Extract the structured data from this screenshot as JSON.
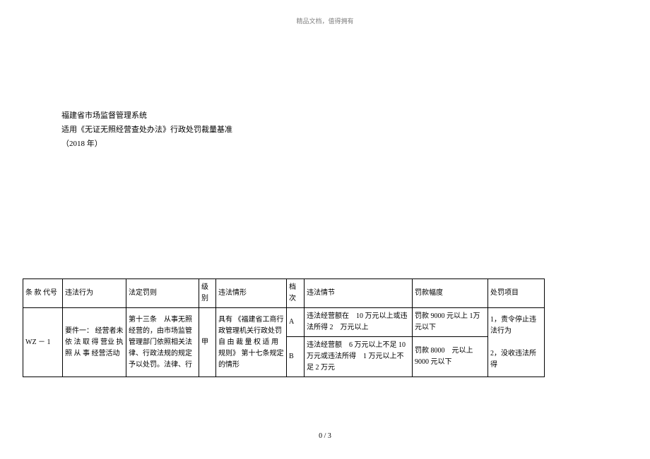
{
  "header": "精品文档，值得拥有",
  "title": {
    "line1": "福建省市场监督管理系统",
    "line2": "适用《无证无照经营查处办法》行政处罚裁量基准",
    "line3": "（2018 年）"
  },
  "table": {
    "headers": {
      "code": "条 款 代号",
      "behavior": "违法行为",
      "penalty": "法定罚则",
      "level": "级别",
      "situation": "违法情形",
      "grade": "档次",
      "detail": "违法情节",
      "range": "罚款幅度",
      "item": "处罚项目"
    },
    "row": {
      "code": "WZ － 1",
      "behavior": "要件一： 经营者未 依 法 取 得 营业 执 照 从 事 经营活动",
      "penalty": "第十三条　从事无照经营的，由市场监管管理部门依照相关法律、行政法规的规定予以处罚。法律、行",
      "level": "甲",
      "situation": "具有 《福建省工商行政管理机关行政处罚自 由 裁 量 权 适 用 规则》 第十七条规定的情形",
      "gradeA": "A",
      "detailA": "违法经营额在　10 万元以上或违法所得 2　万元以上",
      "rangeA": "罚款 9000 元以上 1万元以下",
      "gradeB": "B",
      "detailB": "违法经营额　6 万元以上不足 10万元或违法所得　1 万元以上不足 2 万元",
      "rangeB": "罚款 8000　元以上9000 元以下",
      "item": "1，责令停止违法行为\n\n2，没收违法所得"
    }
  },
  "footer": "0 / 3"
}
